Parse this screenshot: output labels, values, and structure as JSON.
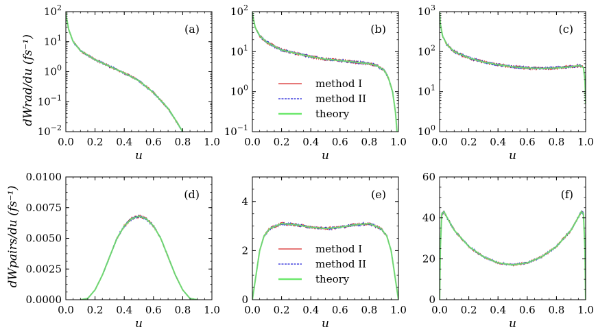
{
  "figure": {
    "ylabel_top": "dWrad/du (fs⁻¹)",
    "ylabel_bottom": "dWpairs/du (fs⁻¹)",
    "legend": [
      "method I",
      "method II",
      "theory"
    ],
    "colors": {
      "method1": "#d62728",
      "method2": "#1f1fd6",
      "theory": "#6ee86e"
    }
  },
  "chart_data": [
    {
      "type": "line",
      "panel": "(a)",
      "scale": "log",
      "xlabel": "u",
      "ylabel": "dW_rad/du (fs^-1)",
      "xlim": [
        0,
        1
      ],
      "ylim": [
        0.01,
        100
      ],
      "xticks": [
        "0.0",
        "0.2",
        "0.4",
        "0.6",
        "0.8",
        "1.0"
      ],
      "yticks": [
        {
          "v": 100,
          "m": "10",
          "e": "2"
        },
        {
          "v": 10,
          "m": "10",
          "e": "1"
        },
        {
          "v": 1,
          "m": "10",
          "e": "0"
        },
        {
          "v": 0.1,
          "m": "10",
          "e": "−1"
        },
        {
          "v": 0.01,
          "m": "10",
          "e": "−2"
        }
      ],
      "series": [
        {
          "name": "method I",
          "noisy": true
        },
        {
          "name": "method II",
          "noisy": true
        },
        {
          "name": "theory",
          "x": [
            0,
            0.005,
            0.02,
            0.05,
            0.1,
            0.2,
            0.3,
            0.4,
            0.5,
            0.6,
            0.7,
            0.75,
            0.8
          ],
          "y": [
            100,
            60,
            25,
            10,
            5,
            2.5,
            1.5,
            0.9,
            0.5,
            0.2,
            0.06,
            0.025,
            0.01
          ]
        }
      ],
      "legend": false
    },
    {
      "type": "line",
      "panel": "(b)",
      "scale": "log",
      "xlabel": "u",
      "xlim": [
        0,
        1
      ],
      "ylim": [
        0.1,
        100
      ],
      "xticks": [
        "0.0",
        "0.2",
        "0.4",
        "0.6",
        "0.8",
        "1.0"
      ],
      "yticks": [
        {
          "v": 100,
          "m": "10",
          "e": "2"
        },
        {
          "v": 10,
          "m": "10",
          "e": "1"
        },
        {
          "v": 1,
          "m": "10",
          "e": "0"
        },
        {
          "v": 0.1,
          "m": "10",
          "e": "−1"
        }
      ],
      "series": [
        {
          "name": "method I",
          "noisy": true
        },
        {
          "name": "method II",
          "noisy": true
        },
        {
          "name": "theory",
          "x": [
            0,
            0.005,
            0.02,
            0.05,
            0.1,
            0.2,
            0.3,
            0.4,
            0.5,
            0.6,
            0.7,
            0.8,
            0.85,
            0.9,
            0.93,
            0.96,
            0.98,
            0.99
          ],
          "y": [
            100,
            70,
            40,
            25,
            17,
            11,
            9,
            7.5,
            6.5,
            6,
            5.5,
            5,
            4.5,
            3.5,
            2.3,
            1,
            0.3,
            0.1
          ]
        }
      ],
      "legend": true
    },
    {
      "type": "line",
      "panel": "(c)",
      "scale": "log",
      "xlabel": "u",
      "xlim": [
        0,
        1
      ],
      "ylim": [
        1,
        1000
      ],
      "xticks": [
        "0.0",
        "0.2",
        "0.4",
        "0.6",
        "0.8",
        "1.0"
      ],
      "yticks": [
        {
          "v": 1000,
          "m": "10",
          "e": "3"
        },
        {
          "v": 100,
          "m": "10",
          "e": "2"
        },
        {
          "v": 10,
          "m": "10",
          "e": "1"
        },
        {
          "v": 1,
          "m": "10",
          "e": "0"
        }
      ],
      "series": [
        {
          "name": "method I",
          "noisy": true
        },
        {
          "name": "method II",
          "noisy": true
        },
        {
          "name": "theory",
          "x": [
            0,
            0.005,
            0.02,
            0.05,
            0.1,
            0.2,
            0.3,
            0.4,
            0.5,
            0.6,
            0.7,
            0.8,
            0.9,
            0.96,
            0.985,
            0.995,
            1.0
          ],
          "y": [
            1000,
            500,
            250,
            150,
            100,
            70,
            55,
            47,
            42,
            39,
            38,
            39,
            42,
            45,
            40,
            20,
            5
          ]
        }
      ],
      "legend": false
    },
    {
      "type": "line",
      "panel": "(d)",
      "scale": "linear",
      "xlabel": "u",
      "ylabel": "dW_pairs/du (fs^-1)",
      "xlim": [
        0,
        1
      ],
      "ylim": [
        0,
        0.01
      ],
      "xticks": [
        "0.0",
        "0.2",
        "0.4",
        "0.6",
        "0.8",
        "1.0"
      ],
      "yticks": [
        {
          "v": 0,
          "t": "0.0000"
        },
        {
          "v": 0.0025,
          "t": "0.0025"
        },
        {
          "v": 0.005,
          "t": "0.0050"
        },
        {
          "v": 0.0075,
          "t": "0.0075"
        },
        {
          "v": 0.01,
          "t": "0.0100"
        }
      ],
      "series": [
        {
          "name": "method I",
          "noisy": true
        },
        {
          "name": "method II",
          "noisy": true
        },
        {
          "name": "theory",
          "x": [
            0.1,
            0.15,
            0.2,
            0.25,
            0.3,
            0.35,
            0.4,
            0.45,
            0.5,
            0.55,
            0.6,
            0.65,
            0.7,
            0.75,
            0.8,
            0.85,
            0.9
          ],
          "y": [
            0,
            0.0001,
            0.0008,
            0.002,
            0.0035,
            0.005,
            0.006,
            0.0066,
            0.0068,
            0.0066,
            0.006,
            0.005,
            0.0035,
            0.002,
            0.0008,
            0.0001,
            0
          ]
        }
      ],
      "legend": false
    },
    {
      "type": "line",
      "panel": "(e)",
      "scale": "linear",
      "xlabel": "u",
      "xlim": [
        0,
        1
      ],
      "ylim": [
        0,
        5
      ],
      "xticks": [
        "0.0",
        "0.2",
        "0.4",
        "0.6",
        "0.8",
        "1.0"
      ],
      "yticks": [
        {
          "v": 0,
          "t": "0"
        },
        {
          "v": 2,
          "t": "2"
        },
        {
          "v": 4,
          "t": "4"
        }
      ],
      "series": [
        {
          "name": "method I",
          "noisy": true
        },
        {
          "name": "method II",
          "noisy": true
        },
        {
          "name": "theory",
          "x": [
            0,
            0.02,
            0.05,
            0.08,
            0.12,
            0.2,
            0.3,
            0.4,
            0.5,
            0.6,
            0.7,
            0.8,
            0.88,
            0.92,
            0.95,
            0.98,
            1.0
          ],
          "y": [
            0,
            0.8,
            2.0,
            2.6,
            2.9,
            3.1,
            3.05,
            2.95,
            2.9,
            2.95,
            3.05,
            3.1,
            2.9,
            2.6,
            2.0,
            0.8,
            0
          ]
        }
      ],
      "legend": true
    },
    {
      "type": "line",
      "panel": "(f)",
      "scale": "linear",
      "xlabel": "u",
      "xlim": [
        0,
        1
      ],
      "ylim": [
        0,
        60
      ],
      "xticks": [
        "0.0",
        "0.2",
        "0.4",
        "0.6",
        "0.8",
        "1.0"
      ],
      "yticks": [
        {
          "v": 0,
          "t": "0"
        },
        {
          "v": 20,
          "t": "20"
        },
        {
          "v": 40,
          "t": "40"
        },
        {
          "v": 60,
          "t": "60"
        }
      ],
      "series": [
        {
          "name": "method I",
          "noisy": true
        },
        {
          "name": "method II",
          "noisy": true
        },
        {
          "name": "theory",
          "x": [
            0,
            0.005,
            0.015,
            0.03,
            0.06,
            0.1,
            0.2,
            0.3,
            0.4,
            0.5,
            0.6,
            0.7,
            0.8,
            0.9,
            0.94,
            0.97,
            0.985,
            0.995,
            1.0
          ],
          "y": [
            0,
            25,
            42,
            43,
            39,
            34,
            26,
            21,
            18,
            17,
            18,
            21,
            26,
            34,
            39,
            43,
            42,
            25,
            0
          ]
        }
      ],
      "legend": false
    }
  ]
}
